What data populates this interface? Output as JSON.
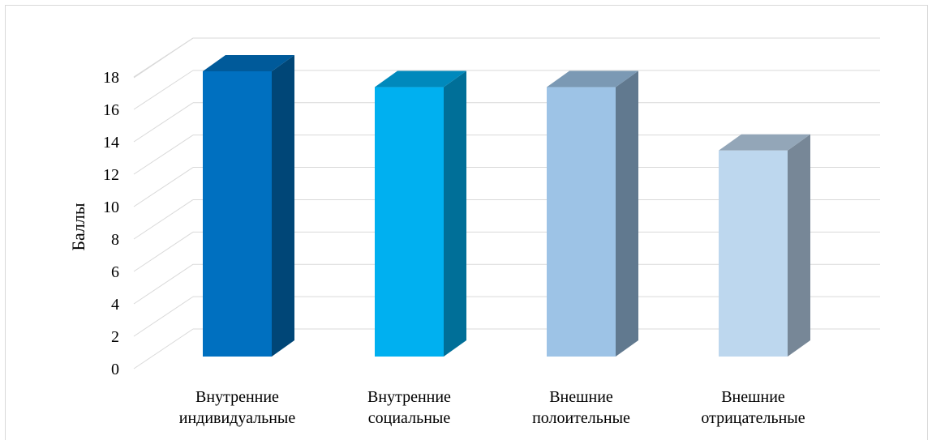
{
  "chart_data": {
    "type": "bar",
    "style": "3d-column",
    "ylabel": "Баллы",
    "xlabel": "",
    "ylim": [
      0,
      18
    ],
    "yticks": [
      0,
      2,
      4,
      6,
      8,
      10,
      12,
      14,
      16,
      18
    ],
    "grid": true,
    "categories": [
      [
        "Внутренние",
        "индивидуальные"
      ],
      [
        "Внутренние",
        "социальные"
      ],
      [
        "Внешние",
        "полоительные"
      ],
      [
        "Внешние",
        "отрицательные"
      ]
    ],
    "values": [
      18,
      17,
      17,
      13
    ],
    "colors": [
      {
        "front": "#0070C0",
        "side": "#004677",
        "top": "#005A9A"
      },
      {
        "front": "#00B0F0",
        "side": "#006F98",
        "top": "#0089BC"
      },
      {
        "front": "#9DC3E6",
        "side": "#61798F",
        "top": "#7B99B4"
      },
      {
        "front": "#BDD7EE",
        "side": "#778797",
        "top": "#93A6B8"
      }
    ]
  }
}
